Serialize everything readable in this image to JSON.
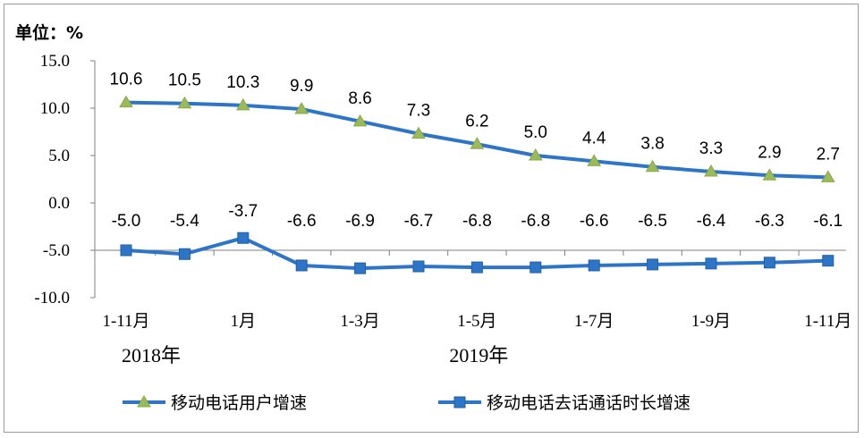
{
  "chart_data": {
    "type": "line",
    "unit_label": "单位：%",
    "ylim": [
      -10,
      15
    ],
    "y_ticks": [
      15,
      10,
      5,
      0,
      -5,
      -10
    ],
    "y_tick_labels": [
      "15.0",
      "10.0",
      "5.0",
      "0.0",
      "-5.0",
      "-10.0"
    ],
    "x_labels": [
      "1-11月",
      "",
      "1月",
      "",
      "1-3月",
      "",
      "1-5月",
      "",
      "1-7月",
      "",
      "1-9月",
      "",
      "1-11月"
    ],
    "year_labels": [
      "2018年",
      "2019年"
    ],
    "legend_position": "bottom",
    "grid": false,
    "series": [
      {
        "name": "移动电话用户增速",
        "color": "#2e75c8",
        "marker": "triangle",
        "marker_color": "#9bbb59",
        "values": [
          10.6,
          10.5,
          10.3,
          9.9,
          8.6,
          7.3,
          6.2,
          5.0,
          4.4,
          3.8,
          3.3,
          2.9,
          2.7
        ],
        "labels": [
          "10.6",
          "10.5",
          "10.3",
          "9.9",
          "8.6",
          "7.3",
          "6.2",
          "5.0",
          "4.4",
          "3.8",
          "3.3",
          "2.9",
          "2.7"
        ]
      },
      {
        "name": "移动电话去话通话时长增速",
        "color": "#2e75c8",
        "marker": "square",
        "marker_color": "#2e75c8",
        "values": [
          -5.0,
          -5.4,
          -3.7,
          -6.6,
          -6.9,
          -6.7,
          -6.8,
          -6.8,
          -6.6,
          -6.5,
          -6.4,
          -6.3,
          -6.1
        ],
        "labels": [
          "-5.0",
          "-5.4",
          "-3.7",
          "-6.6",
          "-6.9",
          "-6.7",
          "-6.8",
          "-6.8",
          "-6.6",
          "-6.5",
          "-6.4",
          "-6.3",
          "-6.1"
        ]
      }
    ]
  }
}
